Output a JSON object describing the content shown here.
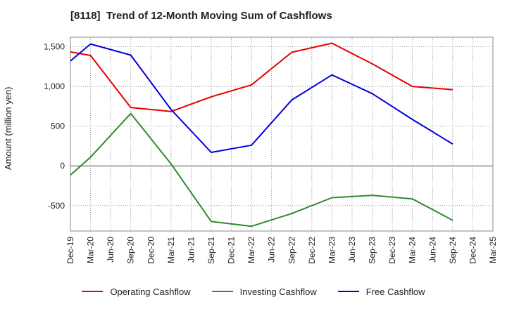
{
  "chart_data": {
    "type": "line",
    "title": "[8118]  Trend of 12-Month Moving Sum of Cashflows",
    "xlabel": "",
    "ylabel": "Amount (million yen)",
    "categories": [
      "Dec-19",
      "Mar-20",
      "Jun-20",
      "Sep-20",
      "Dec-20",
      "Mar-21",
      "Jun-21",
      "Sep-21",
      "Dec-21",
      "Mar-22",
      "Jun-22",
      "Sep-22",
      "Dec-22",
      "Mar-23",
      "Jun-23",
      "Sep-23",
      "Dec-23",
      "Mar-24",
      "Jun-24",
      "Sep-24",
      "Dec-24",
      "Mar-25"
    ],
    "ylim": [
      -820,
      1620
    ],
    "yticks": [
      -500,
      0,
      500,
      1000,
      1500
    ],
    "ytick_labels": [
      "-500",
      "0",
      "500",
      "1,000",
      "1,500"
    ],
    "grid": true,
    "legend_position": "bottom",
    "series": [
      {
        "name": "Operating Cashflow",
        "color": "#e60000",
        "points": [
          [
            "Dec-19",
            1435
          ],
          [
            "Mar-20",
            1390
          ],
          [
            "Sep-20",
            735
          ],
          [
            "Mar-21",
            685
          ],
          [
            "Sep-21",
            870
          ],
          [
            "Mar-22",
            1020
          ],
          [
            "Sep-22",
            1430
          ],
          [
            "Mar-23",
            1545
          ],
          [
            "Sep-23",
            1285
          ],
          [
            "Mar-24",
            1000
          ],
          [
            "Sep-24",
            960
          ]
        ]
      },
      {
        "name": "Investing Cashflow",
        "color": "#2e8b2e",
        "points": [
          [
            "Dec-19",
            -115
          ],
          [
            "Mar-20",
            110
          ],
          [
            "Sep-20",
            660
          ],
          [
            "Mar-21",
            25
          ],
          [
            "Sep-21",
            -700
          ],
          [
            "Mar-22",
            -760
          ],
          [
            "Sep-22",
            -600
          ],
          [
            "Mar-23",
            -400
          ],
          [
            "Sep-23",
            -370
          ],
          [
            "Mar-24",
            -415
          ],
          [
            "Sep-24",
            -685
          ]
        ]
      },
      {
        "name": "Free Cashflow",
        "color": "#0000dd",
        "points": [
          [
            "Dec-19",
            1320
          ],
          [
            "Mar-20",
            1535
          ],
          [
            "Sep-20",
            1395
          ],
          [
            "Mar-21",
            710
          ],
          [
            "Sep-21",
            170
          ],
          [
            "Mar-22",
            260
          ],
          [
            "Sep-22",
            830
          ],
          [
            "Mar-23",
            1145
          ],
          [
            "Sep-23",
            910
          ],
          [
            "Mar-24",
            585
          ],
          [
            "Sep-24",
            275
          ]
        ]
      }
    ]
  }
}
